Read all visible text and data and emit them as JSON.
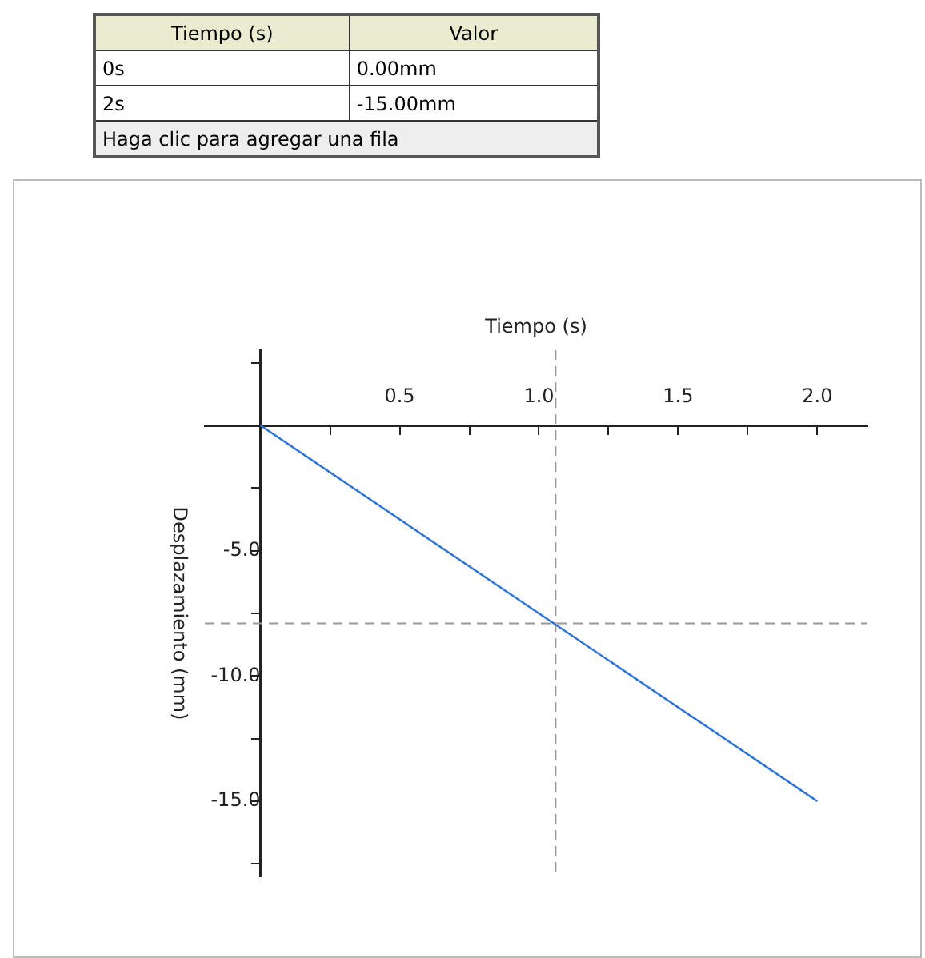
{
  "chart_data": {
    "type": "line",
    "xlabel": "Tiempo (s)",
    "ylabel": "Desplazamiento (mm)",
    "x": [
      0,
      2
    ],
    "series": [
      {
        "color": "#2a72d4",
        "values": [
          0,
          -15
        ]
      }
    ],
    "xlim": [
      -0.2,
      2.18
    ],
    "xticks": [
      {
        "value": 0.25,
        "label": null
      },
      {
        "value": 0.5,
        "label": "0.5"
      },
      {
        "value": 0.75,
        "label": null
      },
      {
        "value": 1,
        "label": "1.0"
      },
      {
        "value": 1.25,
        "label": null
      },
      {
        "value": 1.5,
        "label": "1.5"
      },
      {
        "value": 1.75,
        "label": null
      },
      {
        "value": 2,
        "label": "2.0"
      }
    ],
    "ylim": [
      -18,
      3
    ],
    "yticks": [
      {
        "value": 2.5,
        "label": null
      },
      {
        "value": -2.5,
        "label": null
      },
      {
        "value": -5,
        "label": "-5.0"
      },
      {
        "value": -7.5,
        "label": null
      },
      {
        "value": -10,
        "label": "-10.0"
      },
      {
        "value": -12.5,
        "label": null
      },
      {
        "value": -15,
        "label": "-15.0"
      },
      {
        "value": -17.5,
        "label": null
      }
    ],
    "ref_lines": [
      {
        "axis": "x",
        "value": 1.06,
        "color": "#999999",
        "line_style": "dashed"
      },
      {
        "axis": "y",
        "value": -7.9,
        "color": "#999999",
        "line_style": "dashed"
      }
    ],
    "annotations": [
      "Tiempo (s)",
      "Valor",
      "0s",
      "0.00mm",
      "2s",
      "-15.00mm",
      "Haga clic para agregar una fila"
    ],
    "grid": false,
    "legend": false,
    "marker": "none"
  }
}
